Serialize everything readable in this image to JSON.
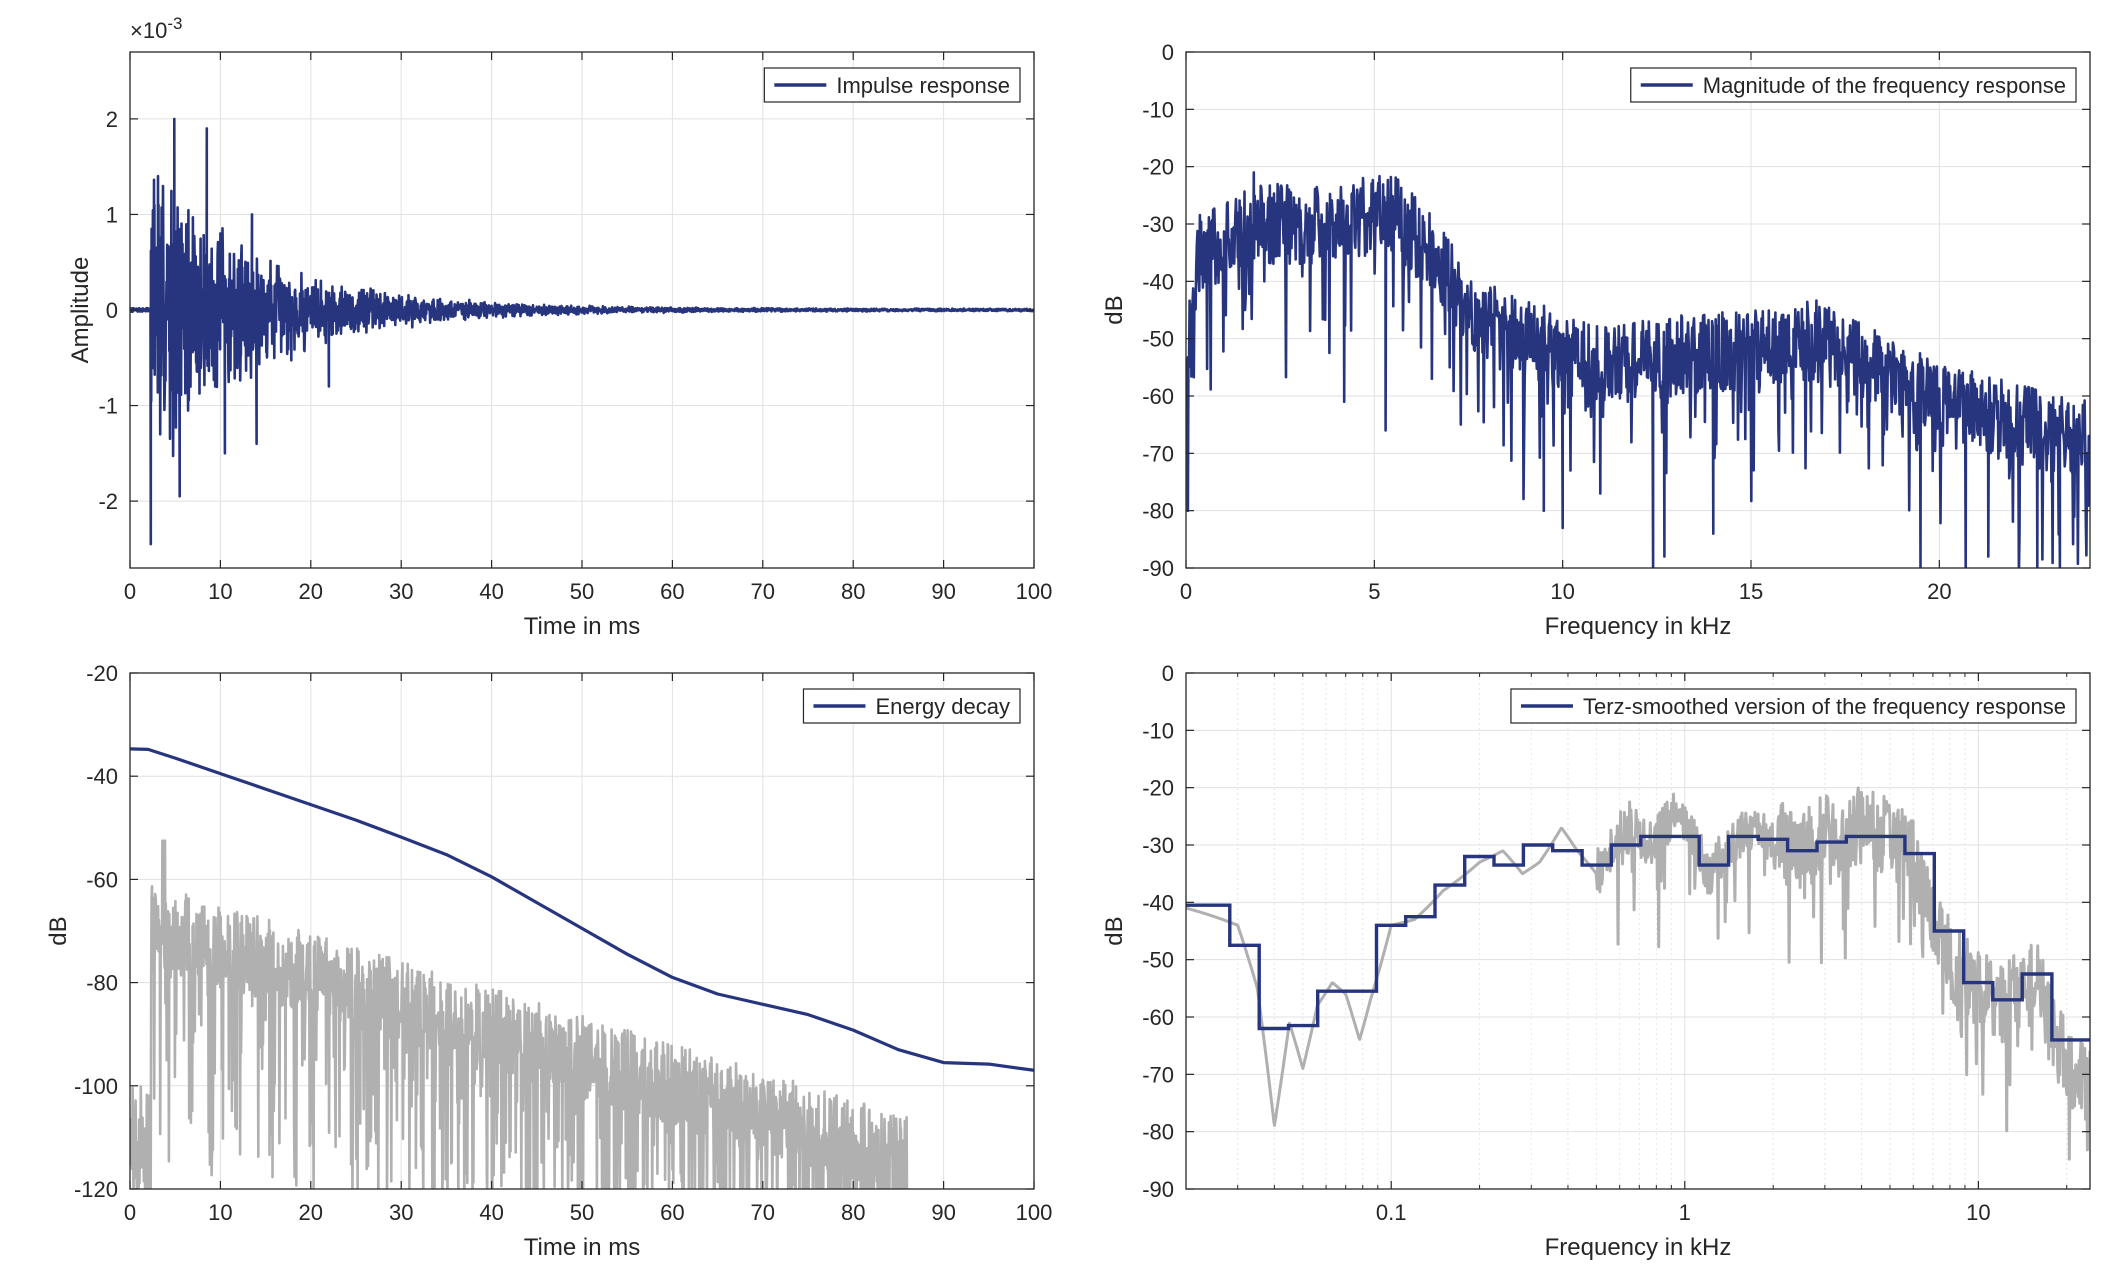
{
  "colors": {
    "series": "#27357f",
    "gray": "#b0b0b0",
    "grid": "#e1e1e1",
    "axis": "#262626"
  },
  "chart_data": [
    {
      "id": "impulse",
      "type": "line",
      "xlabel": "Time in ms",
      "ylabel": "Amplitude",
      "exponent_prefix": "×10",
      "exponent_power": "-3",
      "xlim": [
        0,
        100
      ],
      "ylim": [
        -2.7,
        2.7
      ],
      "xticks": [
        0,
        10,
        20,
        30,
        40,
        50,
        60,
        70,
        80,
        90,
        100
      ],
      "yticks": [
        -2,
        -1,
        0,
        1,
        2
      ],
      "grid": true,
      "legend_position": "top-right",
      "legend": [
        "Impulse response"
      ],
      "series": [
        {
          "name": "Impulse response",
          "envelope": {
            "onset_ms": 2.3,
            "peak": 1.9,
            "decay_tau_ms": 12,
            "noise_floor": 0.015
          },
          "highlights": [
            [
              2.3,
              -2.45
            ],
            [
              2.7,
              1.1
            ],
            [
              3.1,
              1.4
            ],
            [
              4.9,
              2.0
            ],
            [
              5.5,
              -1.95
            ],
            [
              8.5,
              1.9
            ],
            [
              10.5,
              -1.5
            ],
            [
              13.5,
              1.0
            ],
            [
              14,
              -1.4
            ],
            [
              22,
              -0.8
            ]
          ]
        }
      ]
    },
    {
      "id": "magnitude",
      "type": "line",
      "xlabel": "Frequency in kHz",
      "ylabel": "dB",
      "xlim": [
        0,
        24
      ],
      "ylim": [
        -90,
        0
      ],
      "xticks": [
        0,
        5,
        10,
        15,
        20
      ],
      "yticks": [
        0,
        -10,
        -20,
        -30,
        -40,
        -50,
        -60,
        -70,
        -80,
        -90
      ],
      "grid": true,
      "legend_position": "top-right",
      "legend": [
        "Magnitude of the frequency response"
      ],
      "series": [
        {
          "name": "Magnitude of the frequency response",
          "profile": [
            [
              0,
              -55
            ],
            [
              0.3,
              -35
            ],
            [
              1,
              -33
            ],
            [
              2,
              -30
            ],
            [
              4,
              -30
            ],
            [
              5.5,
              -28
            ],
            [
              6.5,
              -35
            ],
            [
              7.5,
              -45
            ],
            [
              9,
              -50
            ],
            [
              11,
              -55
            ],
            [
              13,
              -53
            ],
            [
              15,
              -52
            ],
            [
              17,
              -50
            ],
            [
              19,
              -58
            ],
            [
              21,
              -63
            ],
            [
              24,
              -68
            ]
          ],
          "dips": [
            [
              0.05,
              -80
            ],
            [
              1.8,
              -21
            ],
            [
              4.7,
              -22
            ],
            [
              4.2,
              -61
            ],
            [
              5.3,
              -66
            ],
            [
              7,
              -55
            ],
            [
              9.5,
              -80
            ],
            [
              10,
              -83
            ],
            [
              11,
              -77
            ],
            [
              12.4,
              -90
            ],
            [
              12.7,
              -88
            ],
            [
              14,
              -84
            ],
            [
              17,
              -45
            ],
            [
              19.5,
              -90
            ],
            [
              20.7,
              -90
            ],
            [
              21.3,
              -88
            ],
            [
              22.6,
              -90
            ],
            [
              23.2,
              -90
            ]
          ]
        }
      ]
    },
    {
      "id": "energy",
      "type": "line",
      "xlabel": "Time in ms",
      "ylabel": "dB",
      "xlim": [
        0,
        100
      ],
      "ylim": [
        -120,
        -20
      ],
      "xticks": [
        0,
        10,
        20,
        30,
        40,
        50,
        60,
        70,
        80,
        90,
        100
      ],
      "yticks": [
        -20,
        -40,
        -60,
        -80,
        -100,
        -120
      ],
      "grid": true,
      "legend_position": "top-right",
      "legend": [
        "Energy decay"
      ],
      "series": [
        {
          "name": "Energy decay",
          "x": [
            0,
            2,
            5,
            10,
            15,
            20,
            25,
            30,
            35,
            40,
            45,
            50,
            55,
            60,
            65,
            70,
            75,
            80,
            85,
            90,
            95,
            100
          ],
          "y": [
            -34.7,
            -34.8,
            -36.5,
            -39.5,
            -42.5,
            -45.5,
            -48.5,
            -51.8,
            -55.2,
            -59.5,
            -64.5,
            -69.5,
            -74.5,
            -79,
            -82.2,
            -84.2,
            -86.2,
            -89.2,
            -93,
            -95.5,
            -95.8,
            -97
          ]
        },
        {
          "gray_band_db": {
            "onset_ms": 2.3,
            "start": -72,
            "end": -117,
            "end_ms": 86,
            "peak": -52.5
          }
        }
      ]
    },
    {
      "id": "terz",
      "type": "line",
      "xlabel": "Frequency in kHz",
      "ylabel": "dB",
      "xscale": "log",
      "xlim": [
        0.02,
        24
      ],
      "ylim": [
        -90,
        0
      ],
      "xticks": [
        0.1,
        1,
        10
      ],
      "xticklabels": [
        "0.1",
        "1",
        "10"
      ],
      "yticks": [
        0,
        -10,
        -20,
        -30,
        -40,
        -50,
        -60,
        -70,
        -80,
        -90
      ],
      "grid": true,
      "legend_position": "top-right",
      "legend": [
        "Terz-smoothed version of the frequency response"
      ],
      "series": [
        {
          "name": "Terz-smoothed version of the frequency response",
          "steps": [
            [
              0.02,
              -40.5
            ],
            [
              0.0282,
              -47.5
            ],
            [
              0.0355,
              -62
            ],
            [
              0.0447,
              -61.5
            ],
            [
              0.0562,
              -55.5
            ],
            [
              0.0891,
              -44
            ],
            [
              0.112,
              -42.5
            ],
            [
              0.141,
              -37
            ],
            [
              0.178,
              -32
            ],
            [
              0.224,
              -33.5
            ],
            [
              0.282,
              -30
            ],
            [
              0.355,
              -31
            ],
            [
              0.447,
              -33.5
            ],
            [
              0.562,
              -30
            ],
            [
              0.708,
              -28.5
            ],
            [
              1.12,
              -33.5
            ],
            [
              1.41,
              -28.5
            ],
            [
              1.78,
              -29
            ],
            [
              2.24,
              -31
            ],
            [
              2.82,
              -29.5
            ],
            [
              3.55,
              -28.5
            ],
            [
              4.47,
              -28.5
            ],
            [
              5.62,
              -31.5
            ],
            [
              7.08,
              -45
            ],
            [
              8.91,
              -54
            ],
            [
              11.2,
              -57
            ],
            [
              14.1,
              -52.5
            ],
            [
              17.8,
              -64
            ],
            [
              24,
              -64
            ]
          ]
        },
        {
          "gray_profile": [
            [
              0.02,
              -41
            ],
            [
              0.03,
              -44
            ],
            [
              0.035,
              -55
            ],
            [
              0.04,
              -79
            ],
            [
              0.045,
              -61
            ],
            [
              0.05,
              -69
            ],
            [
              0.056,
              -58
            ],
            [
              0.063,
              -54
            ],
            [
              0.07,
              -56
            ],
            [
              0.078,
              -64
            ],
            [
              0.085,
              -57
            ],
            [
              0.1,
              -44
            ],
            [
              0.12,
              -43
            ],
            [
              0.15,
              -38
            ],
            [
              0.2,
              -33
            ],
            [
              0.24,
              -31
            ],
            [
              0.28,
              -35
            ],
            [
              0.32,
              -33
            ],
            [
              0.38,
              -27
            ],
            [
              0.43,
              -31
            ],
            [
              0.5,
              -35
            ],
            [
              0.58,
              -29
            ],
            [
              0.65,
              -26
            ],
            [
              0.75,
              -30
            ],
            [
              0.85,
              -27
            ],
            [
              0.95,
              -23
            ],
            [
              1.05,
              -28
            ],
            [
              1.2,
              -35
            ],
            [
              1.4,
              -30
            ],
            [
              1.7,
              -27
            ],
            [
              2,
              -29
            ],
            [
              2.5,
              -31
            ],
            [
              3,
              -28
            ],
            [
              3.5,
              -29
            ],
            [
              4,
              -26
            ],
            [
              5,
              -29
            ],
            [
              6,
              -32
            ],
            [
              7,
              -42
            ],
            [
              8,
              -50
            ],
            [
              10,
              -55
            ],
            [
              12,
              -58
            ],
            [
              14,
              -55
            ],
            [
              16,
              -54
            ],
            [
              18,
              -62
            ],
            [
              20,
              -68
            ],
            [
              24,
              -72
            ]
          ]
        }
      ]
    }
  ]
}
